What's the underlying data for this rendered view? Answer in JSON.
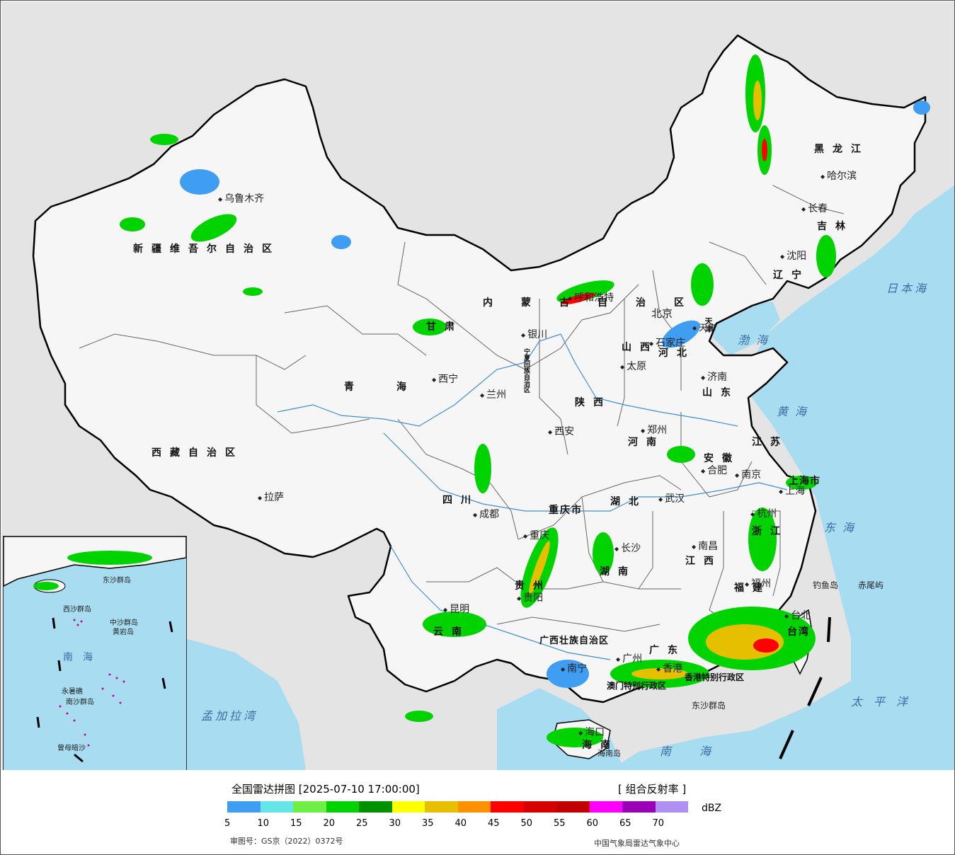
{
  "map": {
    "colors": {
      "sea": "#a8dcf0",
      "land_outside": "#e4e4e4",
      "land_china": "#f4f4f4",
      "border": "#000000",
      "province_border": "#555555",
      "river": "#3f8fd8"
    },
    "provinces": [
      "新疆维吾尔自治区",
      "西藏自治区",
      "青海",
      "甘肃",
      "内蒙古自治区",
      "黑龙江",
      "吉林",
      "辽宁",
      "河北",
      "山西",
      "陕西",
      "河南",
      "山东",
      "江苏",
      "安徽",
      "湖北",
      "四川",
      "重庆市",
      "贵州",
      "云南",
      "湖南",
      "江西",
      "浙江",
      "福建",
      "广东",
      "广西壮族自治区",
      "海南",
      "台湾",
      "上海市",
      "宁夏回族自治区",
      "天津",
      "澳门特别行政区",
      "香港特别行政区"
    ],
    "cities": [
      "乌鲁木齐",
      "拉萨",
      "西宁",
      "兰州",
      "银川",
      "呼和浩特",
      "北京",
      "天津",
      "石家庄",
      "太原",
      "济南",
      "郑州",
      "西安",
      "成都",
      "重庆",
      "贵阳",
      "昆明",
      "南宁",
      "海口",
      "广州",
      "香港",
      "长沙",
      "武汉",
      "南昌",
      "福州",
      "台北",
      "杭州",
      "上海",
      "南京",
      "合肥",
      "沈阳",
      "长春",
      "哈尔滨"
    ],
    "seas": [
      "渤海",
      "黄海",
      "东海",
      "南海",
      "日本海",
      "太平洋",
      "孟加拉湾"
    ],
    "islands": [
      "钓鱼岛",
      "赤尾屿",
      "东沙群岛",
      "海南岛"
    ],
    "inset_labels": [
      "南海",
      "中沙群岛",
      "黄岩岛",
      "西沙群岛",
      "南沙群岛",
      "曾母暗沙",
      "永暑礁",
      "东沙群岛"
    ]
  },
  "legend": {
    "title": "全国雷达拼图 [2025-07-10 17:00:00]",
    "product": "[ 组合反射率 ]",
    "unit": "dBZ",
    "colors": [
      "#3f9df2",
      "#64e6e9",
      "#6fee46",
      "#00d300",
      "#009000",
      "#ffff00",
      "#e6c000",
      "#ff9000",
      "#ff0000",
      "#d60000",
      "#c00000",
      "#ff00ff",
      "#9a00b8",
      "#ae90f0"
    ],
    "ticks": [
      "5",
      "10",
      "15",
      "20",
      "25",
      "30",
      "35",
      "40",
      "45",
      "50",
      "55",
      "60",
      "65",
      "70"
    ],
    "review_number": "审图号：GS京（2022）0372号",
    "organization": "中国气象局雷达气象中心"
  }
}
